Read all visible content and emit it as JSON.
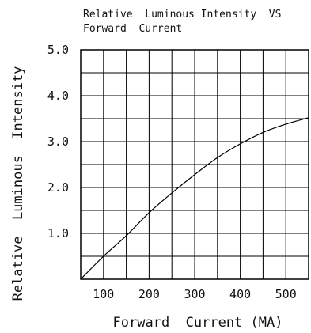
{
  "chart_data": {
    "type": "line",
    "title_lines": [
      "Relative  Luminous Intensity  VS",
      "Forward  Current"
    ],
    "xlabel": "Forward  Current (MA)",
    "ylabel": "Relative  Luminous  Intensity",
    "xlim": [
      50,
      550
    ],
    "ylim": [
      0,
      5.0
    ],
    "x_ticks": [
      {
        "value": 100,
        "label": "100"
      },
      {
        "value": 200,
        "label": "200"
      },
      {
        "value": 300,
        "label": "300"
      },
      {
        "value": 400,
        "label": "400"
      },
      {
        "value": 500,
        "label": "500"
      }
    ],
    "y_ticks": [
      {
        "value": 1.0,
        "label": "1.0"
      },
      {
        "value": 2.0,
        "label": "2.0"
      },
      {
        "value": 3.0,
        "label": "3.0"
      },
      {
        "value": 4.0,
        "label": "4.0"
      },
      {
        "value": 5.0,
        "label": "5.0"
      }
    ],
    "grid": true,
    "grid_x_step": 50,
    "grid_y_step": 0.5,
    "series": [
      {
        "color": "#000000",
        "points": [
          [
            50,
            0.0
          ],
          [
            100,
            0.5
          ],
          [
            150,
            0.95
          ],
          [
            200,
            1.45
          ],
          [
            250,
            1.88
          ],
          [
            300,
            2.28
          ],
          [
            350,
            2.65
          ],
          [
            400,
            2.95
          ],
          [
            450,
            3.2
          ],
          [
            500,
            3.38
          ],
          [
            550,
            3.52
          ]
        ]
      }
    ]
  }
}
